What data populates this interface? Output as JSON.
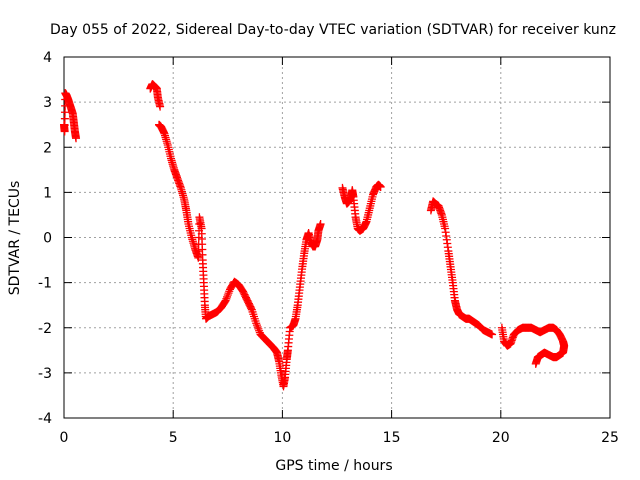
{
  "chart_data": {
    "type": "scatter",
    "title": "Day 055 of 2022, Sidereal Day-to-day VTEC variation (SDTVAR) for receiver kunz",
    "xlabel": "GPS time / hours",
    "ylabel": "SDTVAR / TECUs",
    "xlim": [
      0,
      25
    ],
    "ylim": [
      -4,
      4
    ],
    "xticks": [
      0,
      5,
      10,
      15,
      20,
      25
    ],
    "yticks": [
      -4,
      -3,
      -2,
      -1,
      0,
      1,
      2,
      3,
      4
    ],
    "grid": true,
    "marker": "+",
    "color": "#ff0000",
    "series": [
      {
        "segments": [
          [
            [
              0.0,
              2.5
            ],
            [
              0.03,
              2.35
            ],
            [
              0.06,
              3.2
            ],
            [
              0.12,
              3.15
            ],
            [
              0.2,
              3.05
            ],
            [
              0.3,
              2.9
            ],
            [
              0.4,
              2.75
            ],
            [
              0.45,
              2.55
            ],
            [
              0.5,
              2.35
            ],
            [
              0.55,
              2.2
            ]
          ],
          [
            [
              3.95,
              3.3
            ],
            [
              4.05,
              3.4
            ],
            [
              4.15,
              3.35
            ],
            [
              4.25,
              3.3
            ],
            [
              4.3,
              3.1
            ],
            [
              4.4,
              2.9
            ]
          ],
          [
            [
              4.35,
              2.5
            ],
            [
              4.45,
              2.45
            ],
            [
              4.6,
              2.3
            ],
            [
              4.75,
              2.05
            ],
            [
              4.9,
              1.75
            ],
            [
              5.05,
              1.5
            ],
            [
              5.2,
              1.3
            ],
            [
              5.35,
              1.1
            ],
            [
              5.5,
              0.85
            ],
            [
              5.6,
              0.6
            ],
            [
              5.7,
              0.3
            ],
            [
              5.85,
              0.0
            ],
            [
              6.0,
              -0.25
            ],
            [
              6.15,
              -0.45
            ],
            [
              6.2,
              0.45
            ],
            [
              6.3,
              0.2
            ],
            [
              6.35,
              -0.5
            ],
            [
              6.4,
              -1.0
            ],
            [
              6.45,
              -1.5
            ],
            [
              6.5,
              -1.8
            ],
            [
              6.6,
              -1.75
            ],
            [
              6.8,
              -1.7
            ],
            [
              7.0,
              -1.65
            ],
            [
              7.2,
              -1.55
            ],
            [
              7.4,
              -1.4
            ],
            [
              7.6,
              -1.15
            ],
            [
              7.8,
              -0.98
            ],
            [
              8.0,
              -1.05
            ],
            [
              8.2,
              -1.2
            ],
            [
              8.4,
              -1.4
            ],
            [
              8.6,
              -1.6
            ],
            [
              8.8,
              -1.9
            ],
            [
              9.0,
              -2.15
            ],
            [
              9.2,
              -2.25
            ],
            [
              9.4,
              -2.35
            ],
            [
              9.6,
              -2.45
            ],
            [
              9.75,
              -2.55
            ],
            [
              9.85,
              -2.75
            ],
            [
              9.95,
              -3.05
            ],
            [
              10.05,
              -3.3
            ],
            [
              10.12,
              -3.1
            ],
            [
              10.2,
              -2.7
            ],
            [
              10.25,
              -2.5
            ],
            [
              10.35,
              -2.0
            ],
            [
              10.5,
              -1.95
            ],
            [
              10.6,
              -1.8
            ],
            [
              10.7,
              -1.5
            ],
            [
              10.8,
              -1.1
            ],
            [
              10.9,
              -0.7
            ],
            [
              11.0,
              -0.35
            ],
            [
              11.1,
              -0.05
            ],
            [
              11.2,
              0.1
            ],
            [
              11.3,
              -0.1
            ],
            [
              11.4,
              -0.2
            ],
            [
              11.5,
              -0.2
            ],
            [
              11.6,
              -0.05
            ],
            [
              11.65,
              0.15
            ],
            [
              11.75,
              0.3
            ]
          ],
          [
            [
              12.75,
              1.1
            ],
            [
              12.85,
              0.9
            ],
            [
              12.95,
              0.75
            ],
            [
              13.05,
              0.8
            ],
            [
              13.15,
              0.9
            ],
            [
              13.2,
              1.05
            ],
            [
              13.25,
              0.9
            ],
            [
              13.35,
              0.45
            ],
            [
              13.45,
              0.2
            ],
            [
              13.55,
              0.15
            ],
            [
              13.7,
              0.2
            ],
            [
              13.85,
              0.35
            ],
            [
              14.0,
              0.65
            ],
            [
              14.15,
              0.95
            ],
            [
              14.3,
              1.12
            ],
            [
              14.4,
              1.17
            ],
            [
              14.5,
              1.12
            ]
          ],
          [
            [
              16.8,
              0.6
            ],
            [
              16.9,
              0.8
            ],
            [
              17.0,
              0.75
            ],
            [
              17.15,
              0.7
            ],
            [
              17.3,
              0.5
            ],
            [
              17.45,
              0.2
            ],
            [
              17.6,
              -0.3
            ],
            [
              17.7,
              -0.65
            ],
            [
              17.8,
              -1.0
            ],
            [
              17.9,
              -1.4
            ],
            [
              18.0,
              -1.6
            ],
            [
              18.1,
              -1.7
            ],
            [
              18.25,
              -1.75
            ],
            [
              18.4,
              -1.8
            ],
            [
              18.55,
              -1.8
            ],
            [
              18.7,
              -1.85
            ],
            [
              18.85,
              -1.9
            ],
            [
              19.0,
              -1.95
            ],
            [
              19.2,
              -2.05
            ],
            [
              19.4,
              -2.1
            ],
            [
              19.6,
              -2.15
            ]
          ],
          [
            [
              20.05,
              -2.0
            ],
            [
              20.15,
              -2.3
            ],
            [
              20.3,
              -2.4
            ],
            [
              20.45,
              -2.35
            ],
            [
              20.6,
              -2.15
            ],
            [
              20.8,
              -2.05
            ],
            [
              21.0,
              -2.0
            ],
            [
              21.2,
              -2.0
            ],
            [
              21.4,
              -2.0
            ],
            [
              21.6,
              -2.05
            ],
            [
              21.8,
              -2.1
            ],
            [
              22.0,
              -2.05
            ],
            [
              22.2,
              -2.0
            ],
            [
              22.4,
              -2.0
            ],
            [
              22.55,
              -2.05
            ],
            [
              22.7,
              -2.15
            ],
            [
              22.85,
              -2.3
            ],
            [
              22.9,
              -2.4
            ],
            [
              22.85,
              -2.55
            ],
            [
              22.7,
              -2.6
            ],
            [
              22.55,
              -2.65
            ],
            [
              22.4,
              -2.65
            ],
            [
              22.2,
              -2.6
            ],
            [
              22.0,
              -2.55
            ],
            [
              21.85,
              -2.6
            ],
            [
              21.7,
              -2.65
            ],
            [
              21.6,
              -2.8
            ]
          ]
        ]
      }
    ]
  }
}
